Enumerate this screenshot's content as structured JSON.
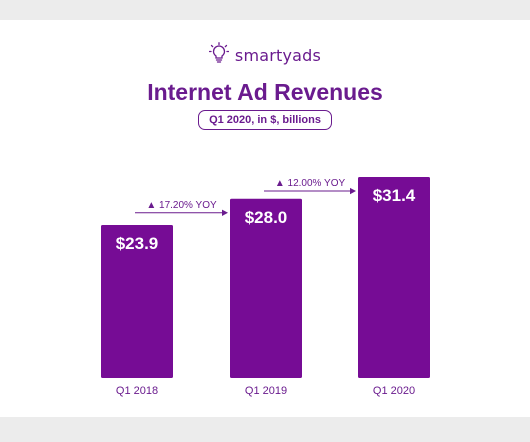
{
  "brand": {
    "name": "smartyads",
    "icon": "lightbulb-icon",
    "color": "#6a1b8e"
  },
  "chart_data": {
    "type": "bar",
    "title": "Internet Ad Revenues",
    "subtitle": "Q1 2020, in $, billions",
    "categories": [
      "Q1 2018",
      "Q1 2019",
      "Q1 2020"
    ],
    "values": [
      23.9,
      28.0,
      31.4
    ],
    "value_labels": [
      "$23.9",
      "$28.0",
      "$31.4"
    ],
    "growth_annotations": [
      {
        "from": "Q1 2018",
        "to": "Q1 2019",
        "label": "▲ 17.20% YOY"
      },
      {
        "from": "Q1 2019",
        "to": "Q1 2020",
        "label": "▲ 12.00% YOY"
      }
    ],
    "xlabel": "",
    "ylabel": "",
    "grid": false,
    "legend": "none",
    "bar_color": "#760c95",
    "text_color": "#6a1b8e"
  }
}
